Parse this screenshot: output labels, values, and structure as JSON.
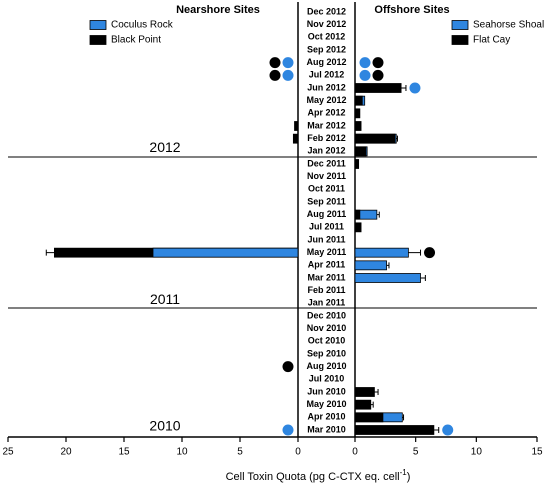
{
  "chart_data": {
    "type": "bar",
    "orientation": "horizontal",
    "categories": [
      "Dec 2012",
      "Nov 2012",
      "Oct 2012",
      "Sep 2012",
      "Aug 2012",
      "Jul 2012",
      "Jun 2012",
      "May 2012",
      "Apr 2012",
      "Mar 2012",
      "Feb 2012",
      "Jan 2012",
      "Dec 2011",
      "Nov 2011",
      "Oct 2011",
      "Sep 2011",
      "Aug 2011",
      "Jul 2011",
      "Jun 2011",
      "May 2011",
      "Apr 2011",
      "Mar 2011",
      "Feb 2011",
      "Jan 2011",
      "Dec 2010",
      "Nov 2010",
      "Oct 2010",
      "Sep 2010",
      "Aug 2010",
      "Jul 2010",
      "Jun 2010",
      "May 2010",
      "Apr 2010",
      "Mar 2010"
    ],
    "year_labels": [
      "2012",
      "2011",
      "2010"
    ],
    "x_label": "Cell Toxin Quota (pg C-CTX eq. cell",
    "x_label_sup": "-1",
    "x_label_end": ")",
    "panels": [
      {
        "title": "Nearshore Sites",
        "xlim": [
          0,
          25
        ],
        "xticks": [
          0,
          5,
          10,
          15,
          20,
          25
        ],
        "direction": "left",
        "series": [
          {
            "name": "Coculus Rock",
            "color": "#2f86e0",
            "values": [
              null,
              null,
              null,
              null,
              null,
              null,
              null,
              null,
              null,
              null,
              null,
              null,
              null,
              null,
              null,
              null,
              null,
              null,
              null,
              12.5,
              null,
              null,
              null,
              null,
              null,
              null,
              null,
              null,
              null,
              null,
              null,
              null,
              null,
              null
            ],
            "errors": [
              null,
              null,
              null,
              null,
              null,
              null,
              null,
              null,
              null,
              null,
              null,
              null,
              null,
              null,
              null,
              null,
              null,
              null,
              null,
              null,
              null,
              null,
              null,
              null,
              null,
              null,
              null,
              null,
              null,
              null,
              null,
              null,
              null,
              null
            ],
            "markers": [
              "Aug 2012",
              "Jul 2012",
              "Mar 2010"
            ]
          },
          {
            "name": "Black Point",
            "color": "#000000",
            "values": [
              null,
              null,
              null,
              null,
              null,
              null,
              null,
              null,
              null,
              0.3,
              0.4,
              null,
              null,
              null,
              null,
              null,
              null,
              null,
              null,
              21,
              null,
              null,
              null,
              null,
              null,
              null,
              null,
              null,
              null,
              null,
              null,
              null,
              null,
              null
            ],
            "errors": [
              null,
              null,
              null,
              null,
              null,
              null,
              null,
              null,
              null,
              null,
              null,
              null,
              null,
              null,
              null,
              null,
              null,
              null,
              null,
              0.7,
              null,
              null,
              null,
              null,
              null,
              null,
              null,
              null,
              null,
              null,
              null,
              null,
              null,
              null
            ],
            "markers": [
              "Aug 2012",
              "Jul 2012",
              "Aug 2010"
            ]
          }
        ]
      },
      {
        "title": "Offshore Sites",
        "xlim": [
          0,
          15
        ],
        "xticks": [
          0,
          5,
          10,
          15
        ],
        "direction": "right",
        "series": [
          {
            "name": "Seahorse Shoal",
            "color": "#2f86e0",
            "values": [
              null,
              null,
              null,
              null,
              null,
              null,
              null,
              0.8,
              null,
              null,
              3.4,
              1.0,
              null,
              null,
              null,
              null,
              1.8,
              null,
              null,
              4.4,
              2.6,
              5.4,
              null,
              null,
              null,
              null,
              null,
              null,
              null,
              null,
              null,
              null,
              3.9,
              null
            ],
            "errors": [
              null,
              null,
              null,
              null,
              null,
              null,
              null,
              null,
              null,
              null,
              0.1,
              null,
              null,
              null,
              null,
              null,
              0.2,
              null,
              null,
              1.0,
              0.2,
              0.4,
              null,
              null,
              null,
              null,
              null,
              null,
              null,
              null,
              null,
              null,
              0.1,
              null
            ],
            "markers": [
              "Aug 2012",
              "Jul 2012",
              "Jun 2012",
              "Mar 2010"
            ]
          },
          {
            "name": "Flat Cay",
            "color": "#000000",
            "values": [
              null,
              null,
              null,
              null,
              null,
              null,
              3.8,
              0.6,
              0.4,
              0.5,
              3.3,
              0.9,
              0.3,
              null,
              null,
              null,
              0.4,
              0.5,
              null,
              null,
              null,
              null,
              null,
              null,
              null,
              null,
              null,
              null,
              null,
              null,
              1.6,
              1.3,
              2.3,
              6.5
            ],
            "errors": [
              null,
              null,
              null,
              null,
              null,
              null,
              0.4,
              null,
              null,
              null,
              null,
              null,
              null,
              null,
              null,
              null,
              null,
              null,
              null,
              null,
              null,
              null,
              null,
              null,
              null,
              null,
              null,
              null,
              null,
              null,
              0.3,
              0.2,
              null,
              0.4
            ],
            "markers": [
              "Aug 2012",
              "Jul 2012",
              "May 2011"
            ]
          }
        ]
      }
    ]
  }
}
